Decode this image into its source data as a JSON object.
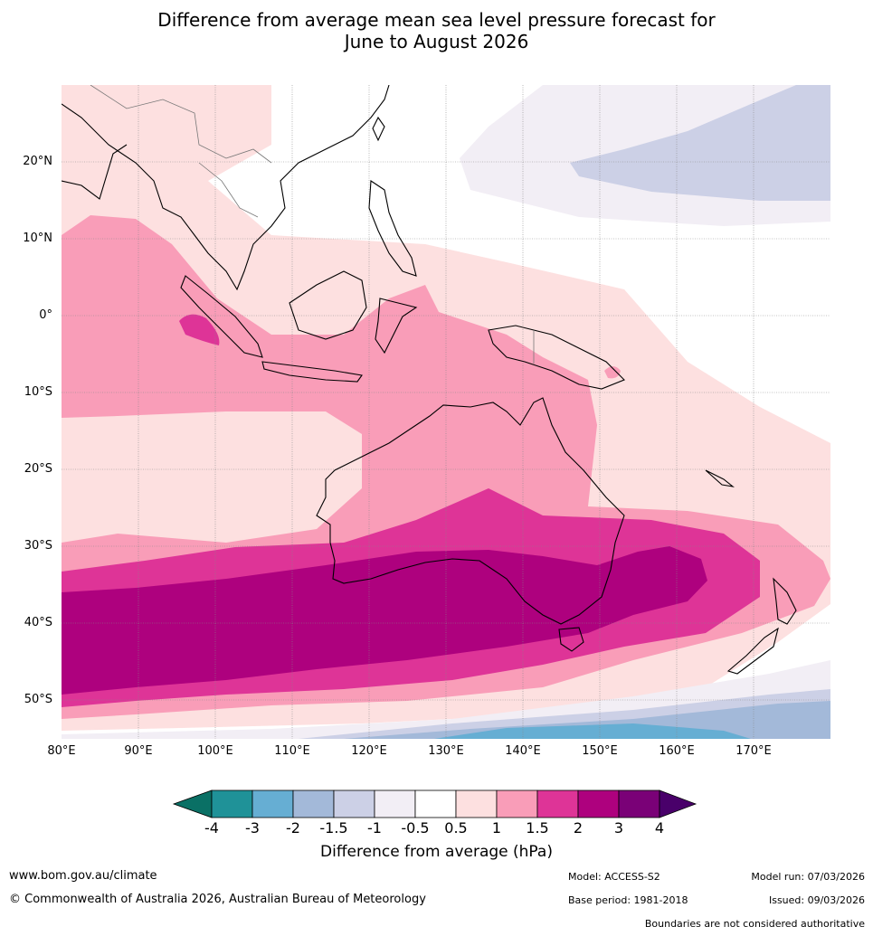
{
  "title": {
    "line1": "Difference from average mean sea level pressure forecast for",
    "line2": "June to August 2026"
  },
  "map": {
    "lat_labels": [
      "20°N",
      "10°N",
      "0°",
      "10°S",
      "20°S",
      "30°S",
      "40°S",
      "50°S"
    ],
    "lon_labels": [
      "80°E",
      "90°E",
      "100°E",
      "110°E",
      "120°E",
      "130°E",
      "140°E",
      "150°E",
      "160°E",
      "170°E"
    ],
    "extent": {
      "lon_min": 80,
      "lon_max": 180,
      "lat_min": -55,
      "lat_max": 30
    }
  },
  "colorbar": {
    "ticks": [
      "-4",
      "-3",
      "-2",
      "-1.5",
      "-1",
      "-0.5",
      "0.5",
      "1",
      "1.5",
      "2",
      "3",
      "4"
    ],
    "colors": [
      "#0a7065",
      "#1f9298",
      "#66aed3",
      "#a3b9d9",
      "#ccd0e6",
      "#f2eef5",
      "#ffffff",
      "#fde0e0",
      "#f99db8",
      "#de3497",
      "#ae017e",
      "#7a0177",
      "#49006a"
    ],
    "label": "Difference from average (hPa)"
  },
  "footer": {
    "url": "www.bom.gov.au/climate",
    "copyright": "© Commonwealth of Australia 2026, Australian Bureau of Meteorology",
    "model": "Model: ACCESS-S2",
    "base_period": "Base period: 1981-2018",
    "model_run": "Model run: 07/03/2026",
    "issued": "Issued: 09/03/2026",
    "disclaimer": "Boundaries are not considered authoritative"
  }
}
